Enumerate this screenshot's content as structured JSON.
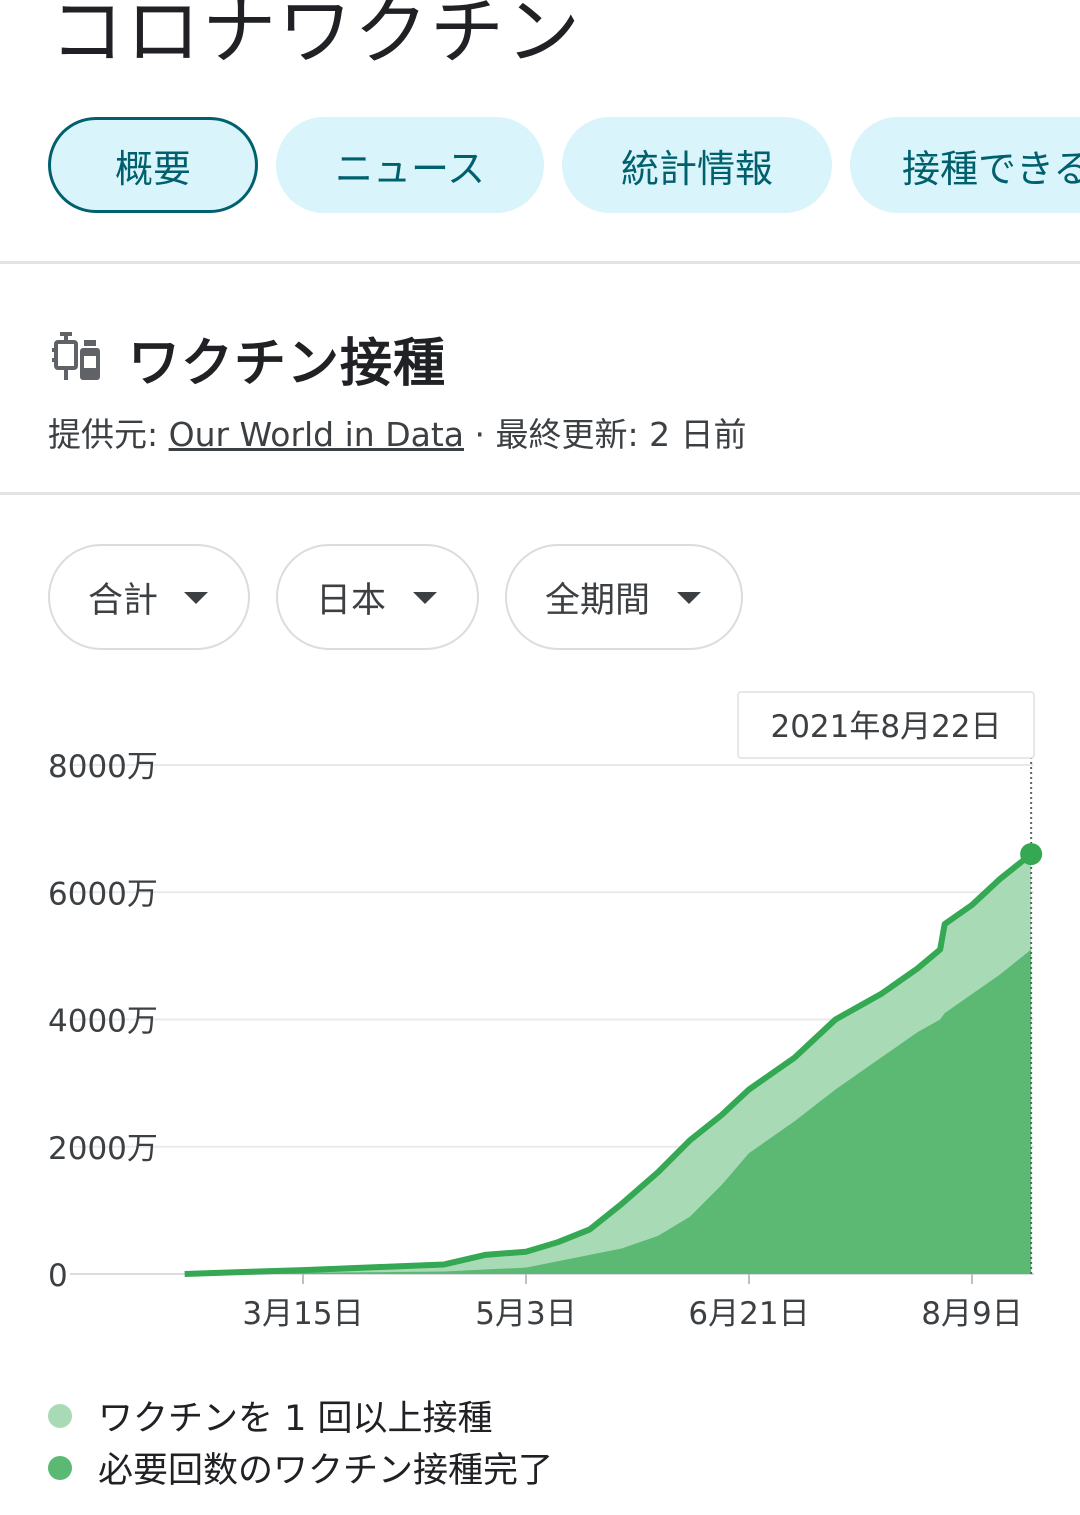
{
  "page_title": "コロナワクチン",
  "tabs": [
    {
      "label": "概要",
      "active": true
    },
    {
      "label": "ニュース",
      "active": false
    },
    {
      "label": "統計情報",
      "active": false
    },
    {
      "label": "接種できる",
      "active": false
    }
  ],
  "section": {
    "icon": "vaccine-icon",
    "title": "ワクチン接種",
    "source_prefix": "提供元: ",
    "source_link": "Our World in Data",
    "separator": " · ",
    "updated_label": "最終更新: 2 日前"
  },
  "filters": [
    {
      "label": "合計"
    },
    {
      "label": "日本"
    },
    {
      "label": "全期間"
    }
  ],
  "colors": {
    "tab_bg": "#d9f4fa",
    "tab_text": "#00606e",
    "series_one_dose": "#a8dab5",
    "series_full": "#5bb974",
    "series_total_line": "#34a853"
  },
  "chart_data": {
    "type": "area",
    "tooltip_label": "2021年8月22日",
    "ylim": [
      0,
      80000000
    ],
    "y_ticks": [
      {
        "value": 0,
        "label": "0"
      },
      {
        "value": 20000000,
        "label": "2000万"
      },
      {
        "value": 40000000,
        "label": "4000万"
      },
      {
        "value": 60000000,
        "label": "6000万"
      },
      {
        "value": 80000000,
        "label": "8000万"
      }
    ],
    "x_ticks": [
      {
        "value": "2021-03-15",
        "label": "3月15日"
      },
      {
        "value": "2021-05-03",
        "label": "5月3日"
      },
      {
        "value": "2021-06-21",
        "label": "6月21日"
      },
      {
        "value": "2021-08-09",
        "label": "8月9日"
      }
    ],
    "x": [
      "2021-02-17",
      "2021-03-01",
      "2021-03-15",
      "2021-04-01",
      "2021-04-15",
      "2021-04-24",
      "2021-05-03",
      "2021-05-10",
      "2021-05-17",
      "2021-05-24",
      "2021-06-01",
      "2021-06-08",
      "2021-06-15",
      "2021-06-21",
      "2021-07-01",
      "2021-07-10",
      "2021-07-20",
      "2021-07-28",
      "2021-08-02",
      "2021-08-03",
      "2021-08-09",
      "2021-08-15",
      "2021-08-22"
    ],
    "series": [
      {
        "name": "ワクチンを 1 回以上接種",
        "values": [
          0,
          300000,
          600000,
          1100000,
          1500000,
          3000000,
          3500000,
          5000000,
          7000000,
          11000000,
          16000000,
          21000000,
          25000000,
          29000000,
          34000000,
          40000000,
          44000000,
          48000000,
          51000000,
          55000000,
          58000000,
          62000000,
          66000000
        ]
      },
      {
        "name": "必要回数のワクチン接種完了",
        "values": [
          0,
          100000,
          200000,
          300000,
          400000,
          700000,
          1000000,
          2000000,
          3000000,
          4000000,
          6000000,
          9000000,
          14000000,
          19000000,
          24000000,
          29000000,
          34000000,
          38000000,
          40000000,
          41000000,
          44000000,
          47000000,
          51000000
        ]
      }
    ]
  }
}
